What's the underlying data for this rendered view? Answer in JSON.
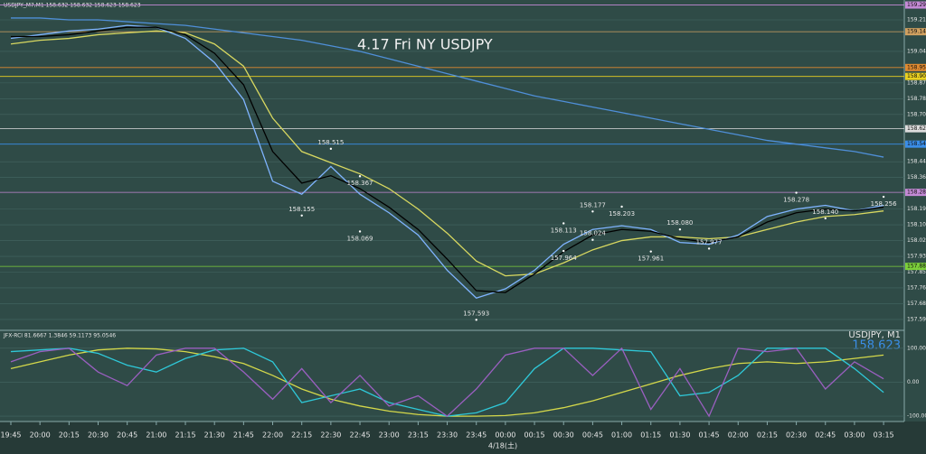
{
  "chart_data": [
    {
      "type": "line",
      "title": "4.17 Fri NY USDJPY",
      "info": "USDJPY_M7,M1  158.632 158.632 158.623 158.623",
      "categories": [
        "19:45",
        "20:00",
        "20:15",
        "20:30",
        "20:45",
        "21:00",
        "21:15",
        "21:30",
        "21:45",
        "22:00",
        "22:15",
        "22:30",
        "22:45",
        "23:00",
        "23:15",
        "23:30",
        "23:45",
        "00:00",
        "00:15",
        "00:30",
        "00:45",
        "01:00",
        "01:15",
        "01:30",
        "01:45",
        "02:00",
        "02:15",
        "02:30",
        "02:45",
        "03:00",
        "03:15"
      ],
      "x_date_label": "4/18(土)",
      "ylim": [
        157.541,
        159.317
      ],
      "yticks": [
        {
          "value": 159.21,
          "label": "159.210"
        },
        {
          "value": 159.04,
          "label": "159.040"
        },
        {
          "value": 158.87,
          "label": "158.870"
        },
        {
          "value": 158.785,
          "label": "158.785"
        },
        {
          "value": 158.7,
          "label": "158.700"
        },
        {
          "value": 158.445,
          "label": "158.445"
        },
        {
          "value": 158.36,
          "label": "158.360"
        },
        {
          "value": 158.19,
          "label": "158.190"
        },
        {
          "value": 158.105,
          "label": "158.105"
        },
        {
          "value": 158.02,
          "label": "158.020"
        },
        {
          "value": 157.935,
          "label": "157.935"
        },
        {
          "value": 157.85,
          "label": "157.850"
        },
        {
          "value": 157.765,
          "label": "157.765"
        },
        {
          "value": 157.68,
          "label": "157.680"
        },
        {
          "value": 157.595,
          "label": "157.595"
        }
      ],
      "series": [
        {
          "color": "#4f8fd8",
          "values": [
            159.22,
            159.22,
            159.21,
            159.21,
            159.2,
            159.19,
            159.18,
            159.16,
            159.14,
            159.12,
            159.1,
            159.07,
            159.04,
            159.0,
            158.96,
            158.92,
            158.88,
            158.84,
            158.8,
            158.77,
            158.74,
            158.71,
            158.68,
            158.65,
            158.62,
            158.59,
            158.56,
            158.54,
            158.52,
            158.5,
            158.47
          ]
        },
        {
          "color": "#d8d860",
          "values": [
            159.08,
            159.1,
            159.11,
            159.13,
            159.14,
            159.15,
            159.14,
            159.08,
            158.96,
            158.68,
            158.5,
            158.44,
            158.38,
            158.3,
            158.19,
            158.06,
            157.91,
            157.83,
            157.84,
            157.9,
            157.97,
            158.02,
            158.04,
            158.04,
            158.03,
            158.04,
            158.08,
            158.12,
            158.15,
            158.16,
            158.18
          ]
        },
        {
          "color": "#7fb4ff",
          "values": [
            159.11,
            159.13,
            159.15,
            159.16,
            159.18,
            159.17,
            159.11,
            158.98,
            158.78,
            158.34,
            158.27,
            158.42,
            158.27,
            158.17,
            158.05,
            157.86,
            157.71,
            157.76,
            157.86,
            158.0,
            158.08,
            158.1,
            158.08,
            158.01,
            158.0,
            158.05,
            158.15,
            158.19,
            158.21,
            158.18,
            158.21
          ]
        },
        {
          "color": "#000000",
          "values": [
            159.12,
            159.12,
            159.13,
            159.15,
            159.17,
            159.17,
            159.13,
            159.03,
            158.86,
            158.5,
            158.33,
            158.37,
            158.3,
            158.2,
            158.08,
            157.92,
            157.75,
            157.74,
            157.84,
            157.96,
            158.05,
            158.08,
            158.07,
            158.03,
            158.01,
            158.04,
            158.12,
            158.17,
            158.19,
            158.18,
            158.2
          ]
        }
      ],
      "levels": [
        {
          "value": 159.29,
          "label": "159.290",
          "color": "#c48ad6"
        },
        {
          "value": 159.146,
          "label": "159.146",
          "color": "#d0a060"
        },
        {
          "value": 158.953,
          "label": "158.953",
          "color": "#e08a30"
        },
        {
          "value": 158.905,
          "label": "158.905",
          "color": "#e8d020"
        },
        {
          "value": 158.623,
          "label": "158.623",
          "color": "#dddddd"
        },
        {
          "value": 158.54,
          "label": "158.540",
          "color": "#3a8ee8"
        },
        {
          "value": 158.28,
          "label": "158.280",
          "color": "#c48ad6"
        },
        {
          "value": 157.881,
          "label": "157.881",
          "color": "#7ccf3a"
        }
      ],
      "annotations": [
        {
          "value": 158.515,
          "label": "158.515",
          "x": "22:30"
        },
        {
          "value": 158.367,
          "label": "158.367",
          "x": "22:45"
        },
        {
          "value": 158.155,
          "label": "158.155",
          "x": "22:15"
        },
        {
          "value": 158.069,
          "label": "158.069",
          "x": "22:45"
        },
        {
          "value": 157.593,
          "label": "157.593",
          "x": "23:45"
        },
        {
          "value": 158.113,
          "label": "158.113",
          "x": "00:30"
        },
        {
          "value": 158.177,
          "label": "158.177",
          "x": "00:45"
        },
        {
          "value": 157.964,
          "label": "157.964",
          "x": "00:30"
        },
        {
          "value": 158.024,
          "label": "158.024",
          "x": "00:45"
        },
        {
          "value": 158.203,
          "label": "158.203",
          "x": "01:00"
        },
        {
          "value": 158.08,
          "label": "158.080",
          "x": "01:30"
        },
        {
          "value": 157.961,
          "label": "157.961",
          "x": "01:15"
        },
        {
          "value": 157.977,
          "label": "157.977",
          "x": "01:45"
        },
        {
          "value": 158.278,
          "label": "158.278",
          "x": "02:30"
        },
        {
          "value": 158.14,
          "label": "158.140",
          "x": "02:45"
        },
        {
          "value": 158.256,
          "label": "158.256",
          "x": "03:15"
        }
      ]
    },
    {
      "type": "line",
      "info": "JFX-RCI 81.6667 1.3846 59.1173 95.0546",
      "symbol": "USDJPY, M1",
      "last": 158.623,
      "ylim": [
        -113,
        150
      ],
      "yticks": [
        {
          "value": 100,
          "label": "100.0000"
        },
        {
          "value": 0,
          "label": "0.00"
        },
        {
          "value": -100,
          "label": "-100.0000"
        }
      ],
      "series": [
        {
          "color": "#d4d84a",
          "values": [
            40,
            60,
            80,
            95,
            100,
            98,
            90,
            75,
            55,
            20,
            -20,
            -50,
            -70,
            -85,
            -95,
            -100,
            -100,
            -98,
            -90,
            -75,
            -55,
            -30,
            -5,
            20,
            40,
            55,
            60,
            55,
            60,
            70,
            80
          ]
        },
        {
          "color": "#2fc8d8",
          "values": [
            90,
            95,
            100,
            85,
            50,
            30,
            70,
            95,
            100,
            60,
            -60,
            -40,
            -20,
            -60,
            -80,
            -100,
            -90,
            -60,
            40,
            100,
            100,
            95,
            90,
            -40,
            -30,
            20,
            100,
            100,
            100,
            40,
            -30
          ]
        },
        {
          "color": "#9a5fc0",
          "values": [
            60,
            90,
            100,
            30,
            -10,
            80,
            100,
            100,
            30,
            -50,
            40,
            -60,
            20,
            -70,
            -40,
            -100,
            -20,
            80,
            100,
            100,
            20,
            100,
            -80,
            40,
            -100,
            100,
            90,
            100,
            -20,
            60,
            10
          ]
        }
      ]
    }
  ]
}
